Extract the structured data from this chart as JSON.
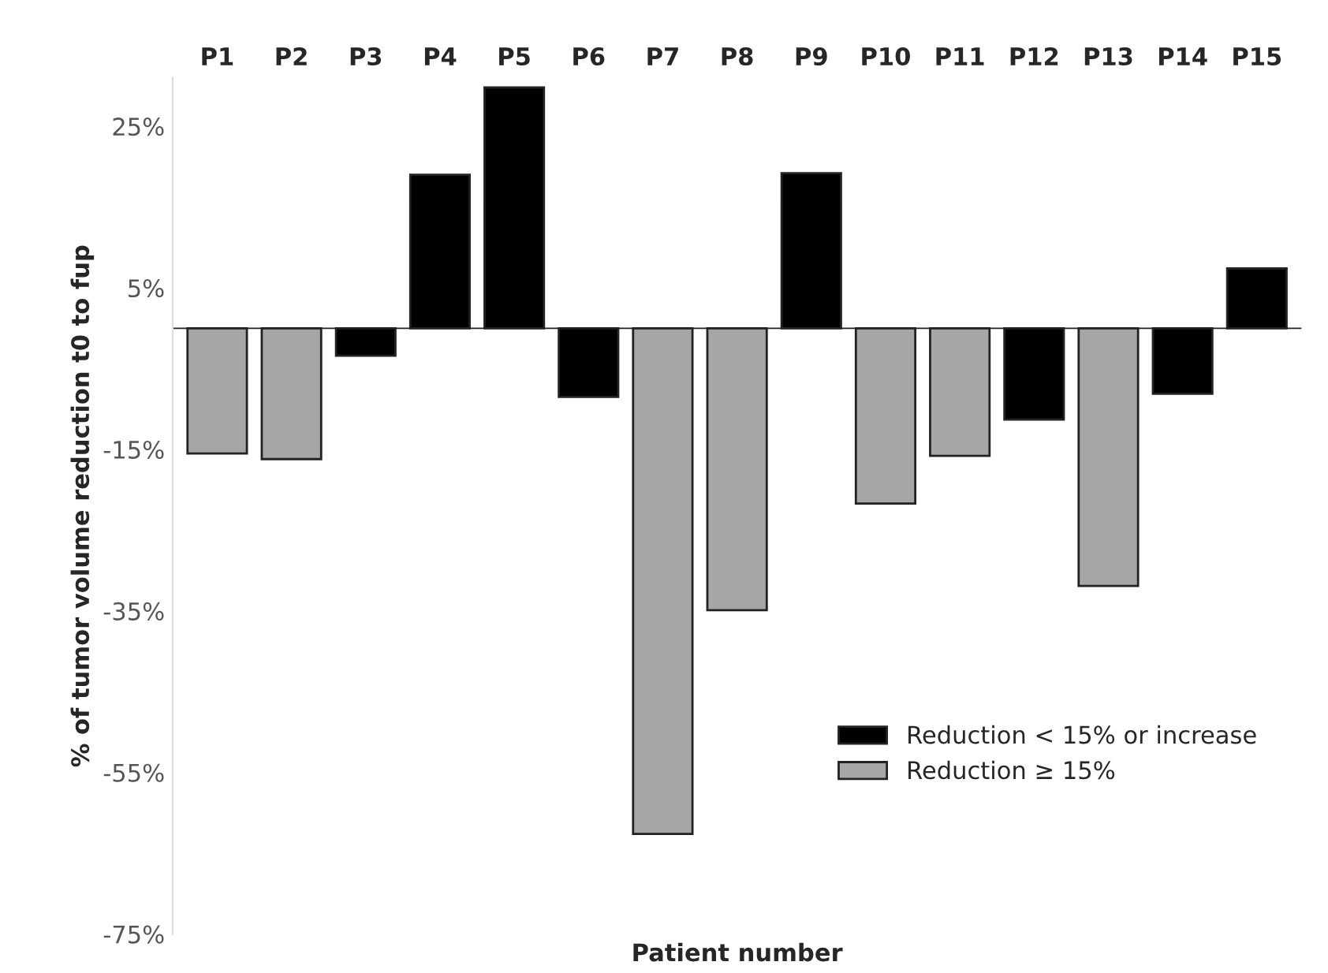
{
  "chart_data": {
    "type": "bar",
    "xlabel": "Patient number",
    "ylabel": "% of tumor volume reduction t0 to fup",
    "categories": [
      "P1",
      "P2",
      "P3",
      "P4",
      "P5",
      "P6",
      "P7",
      "P8",
      "P9",
      "P10",
      "P11",
      "P12",
      "P13",
      "P14",
      "P15"
    ],
    "series": [
      {
        "name": "Reduction < 15% or increase",
        "color": "#000000",
        "values": [
          null,
          null,
          -3.4,
          19,
          29.8,
          -8.5,
          null,
          null,
          19.2,
          null,
          null,
          -11.3,
          null,
          -8.1,
          7.4
        ]
      },
      {
        "name": "Reduction ≥ 15%",
        "color": "#a6a6a6",
        "values": [
          -15.5,
          -16.2,
          null,
          null,
          null,
          null,
          -62.6,
          -34.9,
          null,
          -21.7,
          -15.8,
          null,
          -31.9,
          null,
          null
        ]
      }
    ],
    "ylim": [
      -75,
      31
    ],
    "yticks": [
      {
        "value": 25,
        "label": "25%"
      },
      {
        "value": 5,
        "label": "5%"
      },
      {
        "value": -15,
        "label": "-15%"
      },
      {
        "value": -35,
        "label": "-35%"
      },
      {
        "value": -55,
        "label": "-55%"
      },
      {
        "value": -75,
        "label": "-75%"
      }
    ],
    "grid": false,
    "legend": "bottom right"
  }
}
